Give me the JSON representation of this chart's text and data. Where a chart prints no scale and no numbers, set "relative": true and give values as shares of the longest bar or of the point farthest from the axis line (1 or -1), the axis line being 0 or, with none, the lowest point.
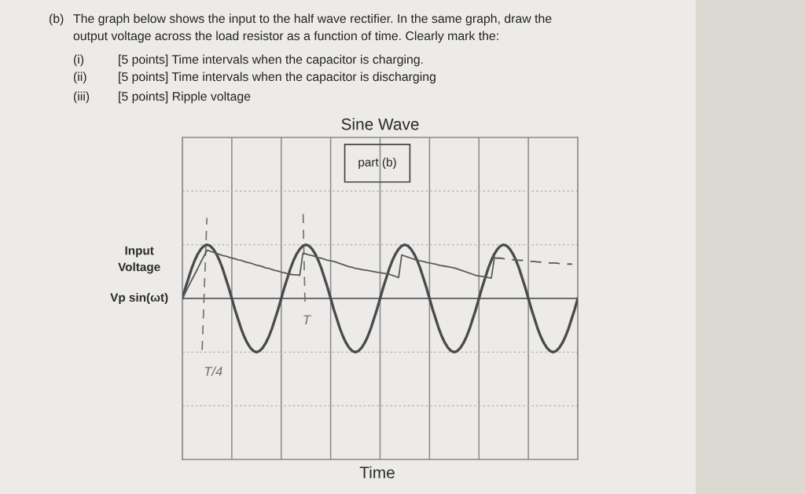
{
  "chart_data": {
    "type": "line",
    "title": "Sine Wave",
    "ylabel": "Input\nVoltage",
    "relative": true,
    "grid": true,
    "annotations": [
      "(b) The graph below shows the input to the half wave rectifier. In the same graph, draw the",
      "output voltage across the load resistor as a function of time. Clearly mark the:",
      "(i) [5 points] Time intervals when the capacitor is charging.",
      "(ii) [5 points] Time intervals when the capacitor is discharging",
      "(iii) [5 points] Ripple voltage",
      "part (b)",
      "T/4",
      "T",
      "Time"
    ],
    "categories": [
      null,
      null,
      null,
      null,
      null,
      null,
      null,
      null,
      null,
      null,
      null,
      null,
      null,
      null,
      null,
      null,
      null,
      null,
      null,
      null,
      null,
      null,
      null,
      null,
      null,
      null,
      null,
      null,
      null,
      null,
      null,
      null,
      null,
      null,
      null,
      null,
      null,
      null,
      null,
      null,
      null,
      null,
      null,
      null,
      null,
      null,
      null,
      null,
      null,
      null,
      null,
      null,
      null,
      null,
      null,
      null,
      null,
      null,
      null,
      null,
      null,
      null,
      null,
      null,
      null,
      null,
      null,
      null,
      null,
      null,
      null,
      null,
      null,
      null,
      null,
      null,
      null,
      null,
      null,
      null,
      null,
      null,
      null,
      null,
      null,
      null,
      null,
      null,
      null,
      null,
      null,
      null,
      null,
      null,
      null,
      null,
      null,
      null,
      null,
      null,
      null,
      null,
      null,
      null,
      null,
      null,
      null,
      null,
      null,
      null,
      null,
      null,
      null,
      null,
      null,
      null,
      null,
      null,
      null,
      null,
      null,
      null,
      null,
      null,
      null,
      null,
      null,
      null,
      null
    ],
    "series": [
      {
        "name": "Vp sin(ωt)",
        "color": "#4a4a4a",
        "values": [
          0,
          0.2,
          0.38,
          0.56,
          0.71,
          0.83,
          0.92,
          0.98,
          1,
          0.98,
          0.92,
          0.83,
          0.71,
          0.56,
          0.38,
          0.2,
          0,
          -0.2,
          -0.38,
          -0.56,
          -0.71,
          -0.83,
          -0.92,
          -0.98,
          -1,
          -0.98,
          -0.92,
          -0.83,
          -0.71,
          -0.56,
          -0.38,
          -0.2,
          0,
          0.2,
          0.38,
          0.56,
          0.71,
          0.83,
          0.92,
          0.98,
          1,
          0.98,
          0.92,
          0.83,
          0.71,
          0.56,
          0.38,
          0.2,
          0,
          -0.2,
          -0.38,
          -0.56,
          -0.71,
          -0.83,
          -0.92,
          -0.98,
          -1,
          -0.98,
          -0.92,
          -0.83,
          -0.71,
          -0.56,
          -0.38,
          -0.2,
          0,
          0.2,
          0.38,
          0.56,
          0.71,
          0.83,
          0.92,
          0.98,
          1,
          0.98,
          0.92,
          0.83,
          0.71,
          0.56,
          0.38,
          0.2,
          0,
          -0.2,
          -0.38,
          -0.56,
          -0.71,
          -0.83,
          -0.92,
          -0.98,
          -1,
          -0.98,
          -0.92,
          -0.83,
          -0.71,
          -0.56,
          -0.38,
          -0.2,
          0,
          0.2,
          0.38,
          0.56,
          0.71,
          0.83,
          0.92,
          0.98,
          1,
          0.98,
          0.92,
          0.83,
          0.71,
          0.56,
          0.38,
          0.2,
          0,
          -0.2,
          -0.38,
          -0.56,
          -0.71,
          -0.83,
          -0.92,
          -0.98,
          -1,
          -0.98,
          -0.92,
          -0.83,
          -0.71,
          -0.56,
          -0.38,
          -0.2,
          0
        ]
      },
      {
        "color": "#5a5a5a",
        "line_style": "solid",
        "values": [
          0,
          0.11,
          0.23,
          0.34,
          0.45,
          0.56,
          0.68,
          0.79,
          0.9,
          0.88,
          0.86,
          0.84,
          0.82,
          0.8,
          0.79,
          0.77,
          0.75,
          0.74,
          0.72,
          0.71,
          0.69,
          0.67,
          0.66,
          0.64,
          0.62,
          0.61,
          0.59,
          0.57,
          0.56,
          0.54,
          0.52,
          0.51,
          0.49,
          0.48,
          0.46,
          0.45,
          0.44,
          0.44,
          0.43,
          0.84,
          0.83,
          0.81,
          0.8,
          0.78,
          0.76,
          0.75,
          0.73,
          0.71,
          0.7,
          0.69,
          0.67,
          0.65,
          0.63,
          0.61,
          0.59,
          0.58,
          0.56,
          0.55,
          0.54,
          0.53,
          0.52,
          0.51,
          0.5,
          0.49,
          0.48,
          0.47,
          0.46,
          0.45,
          0.43,
          0.41,
          0.39,
          0.81,
          0.79,
          0.77,
          0.75,
          0.73,
          0.71,
          0.7,
          0.69,
          0.67,
          0.66,
          0.65,
          0.64,
          0.62,
          0.61,
          0.6,
          0.59,
          0.58,
          0.57,
          0.55,
          0.53,
          0.51,
          0.49,
          0.47,
          0.45,
          0.43,
          0.42,
          0.41,
          0.4,
          0.39,
          0.38,
          0.76,
          null,
          null,
          null,
          null,
          null,
          null,
          null,
          null,
          null,
          null,
          null,
          null,
          null,
          null,
          null,
          null,
          null,
          null,
          null,
          null,
          null,
          null,
          null,
          null,
          null,
          null,
          null
        ]
      },
      {
        "color": "#5a5a5a",
        "line_style": "dashed",
        "values": [
          null,
          null,
          null,
          null,
          null,
          null,
          null,
          null,
          null,
          null,
          null,
          null,
          null,
          null,
          null,
          null,
          null,
          null,
          null,
          null,
          null,
          null,
          null,
          null,
          null,
          null,
          null,
          null,
          null,
          null,
          null,
          null,
          null,
          null,
          null,
          null,
          null,
          null,
          null,
          null,
          null,
          null,
          null,
          null,
          null,
          null,
          null,
          null,
          null,
          null,
          null,
          null,
          null,
          null,
          null,
          null,
          null,
          null,
          null,
          null,
          null,
          null,
          null,
          null,
          null,
          null,
          null,
          null,
          null,
          null,
          null,
          null,
          null,
          null,
          null,
          null,
          null,
          null,
          null,
          null,
          null,
          null,
          null,
          null,
          null,
          null,
          null,
          null,
          null,
          null,
          null,
          null,
          null,
          null,
          null,
          null,
          null,
          null,
          null,
          null,
          null,
          0.76,
          0.75,
          0.75,
          0.74,
          0.73,
          0.73,
          0.72,
          0.72,
          0.71,
          0.71,
          0.7,
          0.7,
          0.69,
          0.69,
          0.68,
          0.68,
          0.67,
          0.67,
          0.66,
          0.66,
          0.66,
          0.65,
          0.65,
          0.65,
          0.64,
          0.64,
          null,
          null
        ]
      }
    ]
  }
}
